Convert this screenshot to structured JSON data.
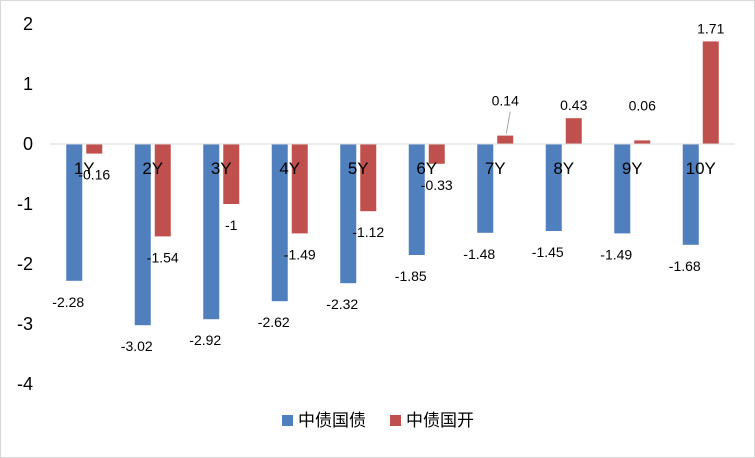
{
  "chart_data": {
    "type": "bar",
    "categories": [
      "1Y",
      "2Y",
      "3Y",
      "4Y",
      "5Y",
      "6Y",
      "7Y",
      "8Y",
      "9Y",
      "10Y"
    ],
    "series": [
      {
        "name": "中债国债",
        "color": "#4F7FBD",
        "values": [
          -2.28,
          -3.02,
          -2.92,
          -2.62,
          -2.32,
          -1.85,
          -1.48,
          -1.45,
          -1.49,
          -1.68
        ],
        "labels": [
          "-2.28",
          "-3.02",
          "-2.92",
          "-2.62",
          "-2.32",
          "-1.85",
          "-1.48",
          "-1.45",
          "-1.49",
          "-1.68"
        ]
      },
      {
        "name": "中债国开",
        "color": "#C0504D",
        "values": [
          -0.16,
          -1.54,
          -1,
          -1.49,
          -1.12,
          -0.33,
          0.14,
          0.43,
          0.06,
          1.71
        ],
        "labels": [
          "-0.16",
          "-1.54",
          "-1",
          "-1.49",
          "-1.12",
          "-0.33",
          "0.14",
          "0.43",
          "0.06",
          "1.71"
        ]
      }
    ],
    "yticks": [
      "2",
      "1",
      "0",
      "-1",
      "-2",
      "-3",
      "-4"
    ],
    "ylim": [
      -4,
      2
    ],
    "grid": false,
    "legend": "bottom",
    "xlabel": "",
    "ylabel": ""
  }
}
